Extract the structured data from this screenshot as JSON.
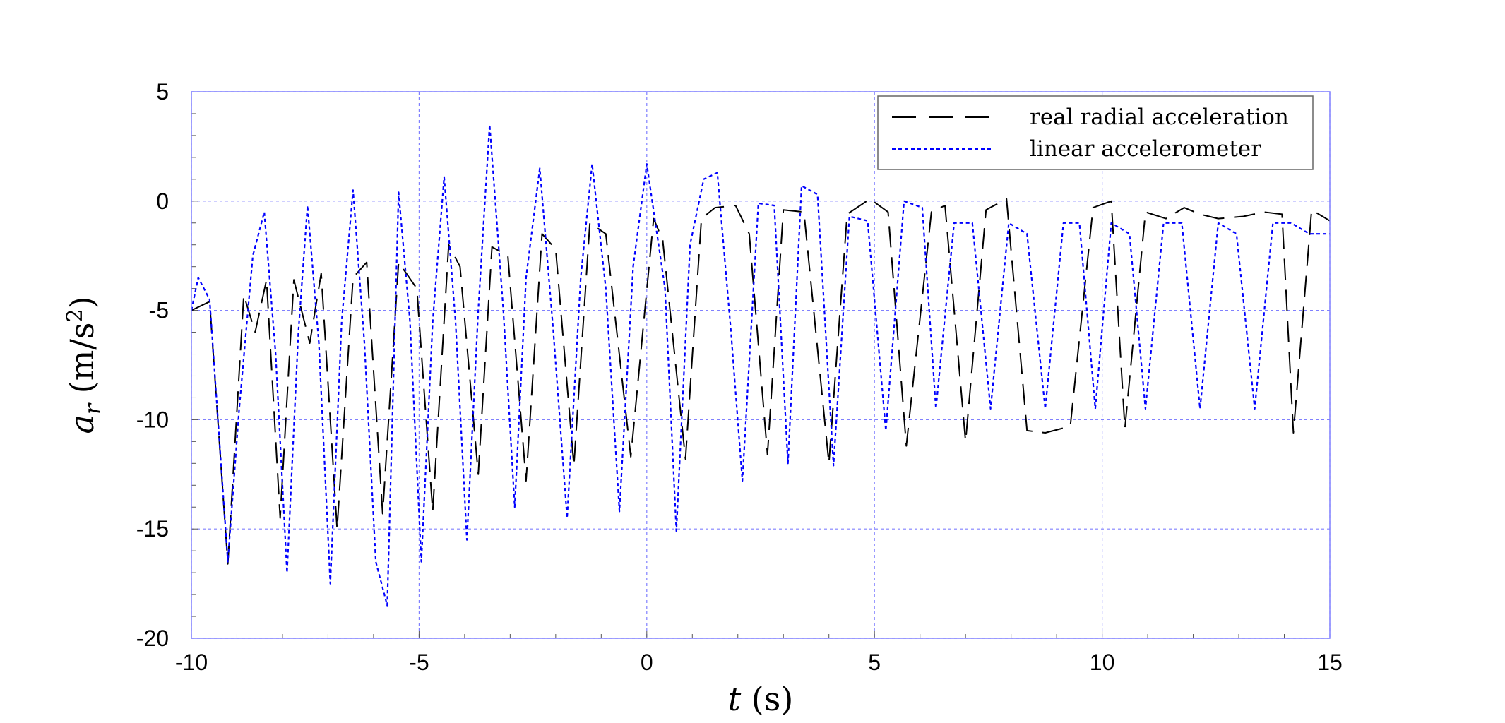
{
  "chart_data": {
    "type": "line",
    "title": "",
    "xlabel": "t (s)",
    "ylabel": "a_r (m/s^2)",
    "xlim": [
      -10,
      15
    ],
    "ylim": [
      -20,
      5
    ],
    "xticks": [
      -10,
      -5,
      0,
      5,
      10,
      15
    ],
    "yticks": [
      5,
      0,
      -5,
      -10,
      -15,
      -20
    ],
    "xtick_labels": [
      "-10",
      "-5",
      "0",
      "5",
      "10",
      "15"
    ],
    "ytick_labels": [
      "5",
      "0",
      "-5",
      "-10",
      "-15",
      "-20"
    ],
    "grid": true,
    "legend_position": "top-right",
    "colors": {
      "real": "#000000",
      "linear": "#0000ff",
      "grid": "#8080ff"
    },
    "series": [
      {
        "name": "real radial acceleration",
        "style": "dashed",
        "x": [
          -10,
          -9.6,
          -9.2,
          -8.85,
          -8.6,
          -8.35,
          -8.05,
          -7.75,
          -7.4,
          -7.15,
          -6.8,
          -6.45,
          -6.15,
          -5.8,
          -5.45,
          -5.05,
          -4.7,
          -4.35,
          -4.1,
          -3.7,
          -3.4,
          -3.05,
          -2.65,
          -2.3,
          -2.0,
          -1.6,
          -1.25,
          -0.9,
          -0.35,
          0.15,
          0.35,
          0.85,
          1.2,
          1.5,
          1.95,
          2.25,
          2.65,
          3.0,
          3.45,
          4.0,
          4.4,
          4.9,
          5.3,
          5.7,
          6.25,
          6.55,
          7.0,
          7.45,
          7.9,
          8.35,
          8.75,
          9.3,
          9.8,
          10.2,
          10.5,
          10.95,
          11.4,
          11.8,
          12.15,
          12.55,
          13.1,
          13.55,
          13.95,
          14.2,
          14.6,
          15.0
        ],
        "y": [
          -5.0,
          -4.6,
          -16.6,
          -4.3,
          -6.0,
          -3.6,
          -14.5,
          -3.6,
          -6.5,
          -3.3,
          -15.0,
          -3.5,
          -2.8,
          -14.3,
          -2.8,
          -4.0,
          -14.2,
          -2.0,
          -3.0,
          -12.5,
          -2.1,
          -2.5,
          -12.8,
          -1.5,
          -2.2,
          -12.1,
          -1.0,
          -1.5,
          -11.7,
          -0.8,
          -1.8,
          -11.8,
          -0.8,
          -0.3,
          -0.2,
          -1.5,
          -11.6,
          -0.4,
          -0.5,
          -12.0,
          -0.6,
          0.1,
          -0.5,
          -11.2,
          -0.5,
          -0.2,
          -11.0,
          -0.4,
          0.1,
          -10.5,
          -10.6,
          -10.3,
          -0.3,
          0.0,
          -10.4,
          -0.5,
          -0.8,
          -0.3,
          -0.6,
          -0.8,
          -0.7,
          -0.5,
          -0.6,
          -10.6,
          -0.4,
          -0.9
        ]
      },
      {
        "name": "linear accelerometer",
        "style": "dotted",
        "x": [
          -10,
          -9.85,
          -9.6,
          -9.4,
          -9.2,
          -8.95,
          -8.65,
          -8.4,
          -8.15,
          -7.9,
          -7.65,
          -7.45,
          -7.2,
          -6.95,
          -6.7,
          -6.45,
          -6.2,
          -5.95,
          -5.7,
          -5.45,
          -5.2,
          -4.95,
          -4.7,
          -4.45,
          -4.2,
          -3.95,
          -3.7,
          -3.45,
          -3.15,
          -2.9,
          -2.65,
          -2.35,
          -2.05,
          -1.75,
          -1.45,
          -1.2,
          -0.9,
          -0.6,
          -0.3,
          0.0,
          0.4,
          0.65,
          0.95,
          1.25,
          1.55,
          1.85,
          2.1,
          2.45,
          2.8,
          3.1,
          3.4,
          3.75,
          4.1,
          4.45,
          4.85,
          5.25,
          5.65,
          6.05,
          6.35,
          6.75,
          7.15,
          7.55,
          7.95,
          8.35,
          8.75,
          9.15,
          9.5,
          9.85,
          10.2,
          10.6,
          10.95,
          11.35,
          11.75,
          12.15,
          12.55,
          12.95,
          13.35,
          13.75,
          14.15,
          14.55,
          15.0
        ],
        "y": [
          -5.0,
          -3.5,
          -4.5,
          -10.5,
          -16.5,
          -9.5,
          -2.5,
          -0.5,
          -7.0,
          -17.0,
          -6.0,
          -0.2,
          -6.5,
          -17.5,
          -5.5,
          0.5,
          -6.5,
          -16.5,
          -18.5,
          0.4,
          -5.5,
          -16.5,
          -5.5,
          1.1,
          -5.5,
          -15.5,
          -5.0,
          3.5,
          -5.0,
          -14.0,
          -3.5,
          1.5,
          -6.0,
          -14.5,
          -3.5,
          1.7,
          -4.0,
          -14.2,
          -3.0,
          1.7,
          -4.0,
          -15.1,
          -2.0,
          1.0,
          1.3,
          -6.0,
          -12.8,
          -0.1,
          -0.2,
          -12.0,
          0.7,
          0.3,
          -12.1,
          -0.7,
          -0.9,
          -10.5,
          0.0,
          -0.3,
          -9.5,
          -1.0,
          -1.0,
          -9.5,
          -1.0,
          -1.5,
          -9.5,
          -1.0,
          -1.0,
          -9.5,
          -1.0,
          -1.5,
          -9.5,
          -1.0,
          -1.0,
          -9.5,
          -1.0,
          -1.5,
          -9.5,
          -1.0,
          -1.0,
          -1.5,
          -1.5
        ]
      }
    ]
  }
}
